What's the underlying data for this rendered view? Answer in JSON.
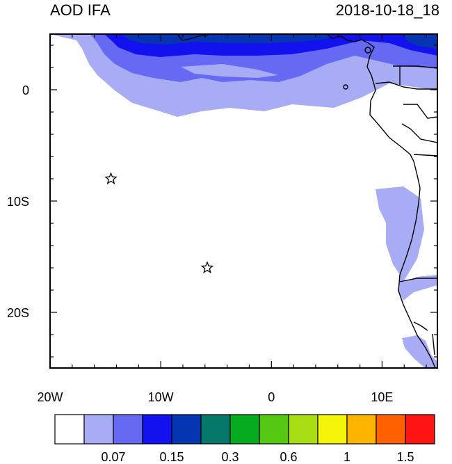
{
  "title_left": "AOD IFA",
  "title_right": "2018-10-18_18",
  "map": {
    "lon_range": [
      -20,
      15
    ],
    "lat_range": [
      -25,
      5
    ],
    "x_ticks": [
      {
        "lon": -20,
        "label": "20W"
      },
      {
        "lon": -10,
        "label": "10W"
      },
      {
        "lon": 0,
        "label": "0"
      },
      {
        "lon": 10,
        "label": "10E"
      }
    ],
    "y_ticks": [
      {
        "lat": 0,
        "label": "0"
      },
      {
        "lat": -10,
        "label": "10S"
      },
      {
        "lat": -20,
        "label": "20S"
      }
    ],
    "stars": [
      {
        "lon": -14.5,
        "lat": -8
      },
      {
        "lon": -5.8,
        "lat": -16
      }
    ]
  },
  "colorbar": {
    "colors": [
      "#ffffff",
      "#a7acf5",
      "#6669f2",
      "#1212ee",
      "#0535b0",
      "#05786a",
      "#05aa1e",
      "#55c814",
      "#aade14",
      "#f5f50a",
      "#ffb400",
      "#ff6000",
      "#ff1414"
    ],
    "labels": [
      "0.07",
      "0.15",
      "0.3",
      "0.6",
      "1",
      "1.5"
    ],
    "label_boundaries": [
      2,
      4,
      6,
      8,
      10,
      12
    ]
  }
}
